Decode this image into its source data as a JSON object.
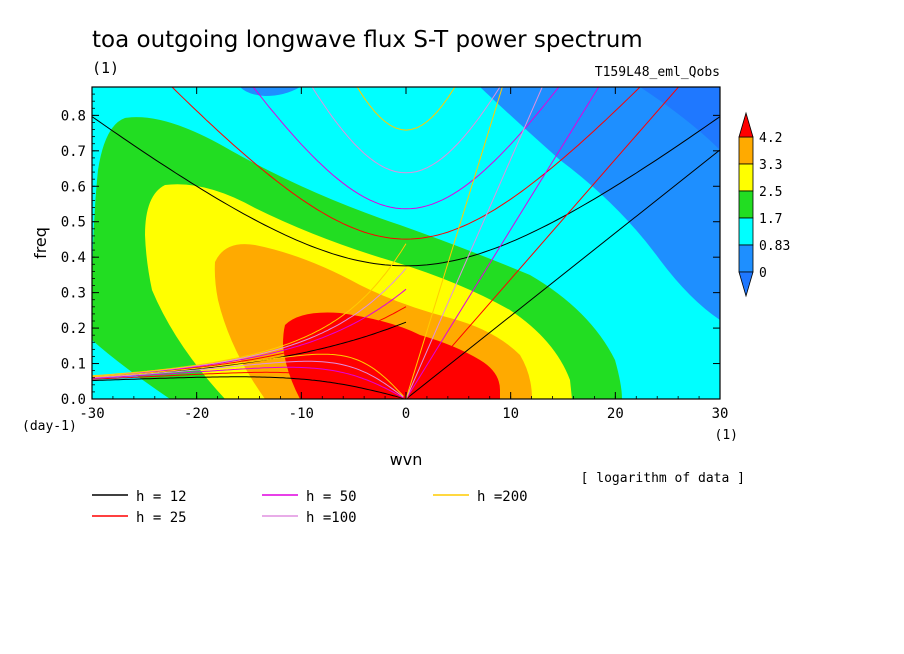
{
  "chart_data": {
    "type": "heatmap",
    "title": "toa outgoing longwave flux S-T power spectrum",
    "subtitle_left": "(1)",
    "subtitle_right": "T159L48_eml_Qobs",
    "xlabel": "wvn",
    "ylabel": "freq",
    "x_unit": "(1)",
    "y_unit": "(day-1)",
    "xlim": [
      -30,
      30
    ],
    "ylim": [
      0,
      0.88
    ],
    "x_ticks": [
      "-30",
      "-20",
      "-10",
      "0",
      "10",
      "20",
      "30"
    ],
    "x_tick_values": [
      -30,
      -20,
      -10,
      0,
      10,
      20,
      30
    ],
    "y_ticks": [
      "0.0",
      "0.1",
      "0.2",
      "0.3",
      "0.4",
      "0.5",
      "0.6",
      "0.7",
      "0.8"
    ],
    "y_tick_values": [
      0,
      0.1,
      0.2,
      0.3,
      0.4,
      0.5,
      0.6,
      0.7,
      0.8
    ],
    "note": "[ logarithm of data ]",
    "colorbar": {
      "levels": [
        "0",
        "0.83",
        "1.7",
        "2.5",
        "3.3",
        "4.2"
      ],
      "level_values": [
        0,
        0.83,
        1.7,
        2.5,
        3.3,
        4.2
      ],
      "colors": [
        "#1f78ff",
        "#1e8fff",
        "#00ffff",
        "#22dd22",
        "#ffff00",
        "#ffaa00",
        "#ff0000"
      ],
      "under_color": "#1f78ff",
      "over_color": "#ff0000"
    },
    "dispersion_curves": [
      {
        "label": "h = 12",
        "h": 12,
        "color": "#000000"
      },
      {
        "label": "h = 25",
        "h": 25,
        "color": "#ff0000"
      },
      {
        "label": "h = 50",
        "h": 50,
        "color": "#e000e0"
      },
      {
        "label": "h =100",
        "h": 100,
        "color": "#e090e0"
      },
      {
        "label": "h =200",
        "h": 200,
        "color": "#ffcc00"
      }
    ]
  }
}
